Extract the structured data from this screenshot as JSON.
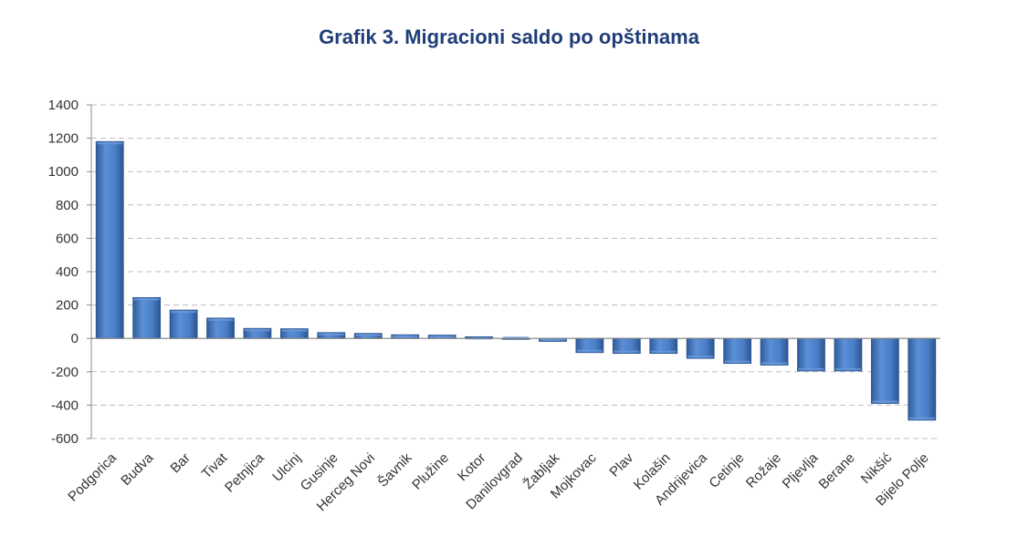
{
  "chart_data": {
    "type": "bar",
    "title": "Grafik 3. Migracioni saldo po opštinama",
    "xlabel": "",
    "ylabel": "",
    "ylim": [
      -600,
      1400
    ],
    "yticks": [
      1400,
      1200,
      1000,
      800,
      600,
      400,
      200,
      0,
      -200,
      -400,
      -600
    ],
    "grid": true,
    "categories": [
      "Podgorica",
      "Budva",
      "Bar",
      "Tivat",
      "Petnjica",
      "Ulcinj",
      "Gusinje",
      "Herceg Novi",
      "Šavnik",
      "Plužine",
      "Kotor",
      "Danilovgrad",
      "Žabljak",
      "Mojkovac",
      "Plav",
      "Kolašin",
      "Andrijevica",
      "Cetinje",
      "Rožaje",
      "Pljevlja",
      "Berane",
      "Nikšić",
      "Bijelo Polje"
    ],
    "values": [
      1180,
      245,
      170,
      122,
      60,
      58,
      35,
      30,
      22,
      20,
      10,
      -5,
      -18,
      -85,
      -90,
      -90,
      -120,
      -150,
      -160,
      -195,
      -195,
      -390,
      -490
    ],
    "colors": {
      "bar": "#4a7fc9",
      "bar_dark": "#2c5590",
      "bar_light": "#6d9ad9",
      "grid": "#bdbdbd"
    }
  }
}
